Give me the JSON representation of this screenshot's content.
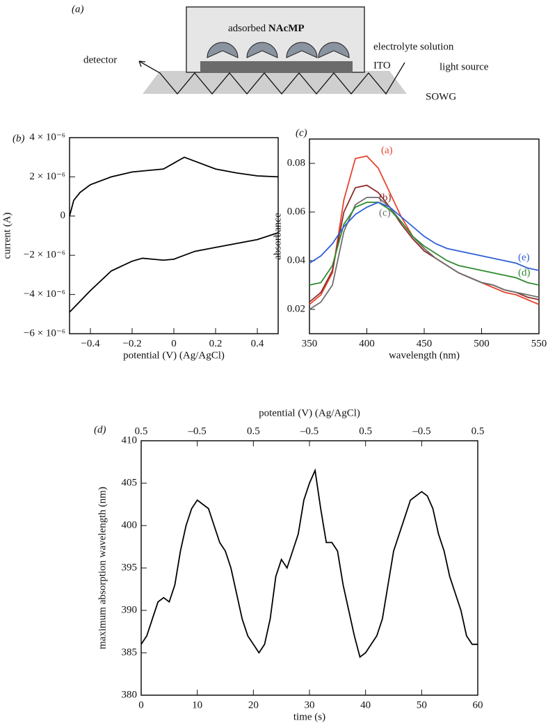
{
  "diagram": {
    "panel": "(a)",
    "adsorbed": "adsorbed",
    "molecule": "NAcMP",
    "electrolyte": "electrolyte solution",
    "detector": "detector",
    "ito": "ITO",
    "light": "light source",
    "sowg": "SOWG"
  },
  "chart_data": [
    {
      "type": "line",
      "panel": "(b)",
      "xlabel": "potential (V) (Ag/AgCl)",
      "ylabel": "current (A)",
      "xlim": [
        -0.5,
        0.5
      ],
      "xticks": [
        {
          "value": -0.4,
          "label": "−0.4"
        },
        {
          "value": -0.2,
          "label": "−0.2"
        },
        0,
        0.2,
        0.4
      ],
      "ylim": [
        -6e-06,
        4e-06
      ],
      "yticks": [
        {
          "value": 4e-06,
          "label": "4 × 10⁻⁶"
        },
        {
          "value": 2e-06,
          "label": "2 × 10⁻⁶"
        },
        0,
        {
          "value": -2e-06,
          "label": "−2 × 10⁻⁶"
        },
        {
          "value": -4e-06,
          "label": "−4 × 10⁻⁶"
        },
        {
          "value": -6e-06,
          "label": "−6 × 10⁻⁶"
        }
      ],
      "series": [
        {
          "color": "#000000",
          "x": [
            -0.5,
            -0.48,
            -0.45,
            -0.4,
            -0.3,
            -0.2,
            -0.1,
            -0.05,
            0,
            0.05,
            0.1,
            0.2,
            0.3,
            0.4,
            0.5
          ],
          "values": [
            0,
            8e-07,
            1.2e-06,
            1.6e-06,
            2e-06,
            2.25e-06,
            2.35e-06,
            2.4e-06,
            2.7e-06,
            3e-06,
            2.8e-06,
            2.4e-06,
            2.2e-06,
            2.05e-06,
            2e-06
          ]
        },
        {
          "color": "#000000",
          "x": [
            0.5,
            0.4,
            0.3,
            0.2,
            0.1,
            0.05,
            0,
            -0.05,
            -0.1,
            -0.15,
            -0.2,
            -0.3,
            -0.4,
            -0.5
          ],
          "values": [
            -8.5e-07,
            -1.2e-06,
            -1.4e-06,
            -1.6e-06,
            -1.8e-06,
            -2e-06,
            -2.2e-06,
            -2.25e-06,
            -2.2e-06,
            -2.15e-06,
            -2.3e-06,
            -2.8e-06,
            -3.8e-06,
            -4.9e-06
          ]
        }
      ]
    },
    {
      "type": "line",
      "panel": "(c)",
      "xlabel": "wavelength (nm)",
      "ylabel": "absorbance",
      "xlim": [
        350,
        550
      ],
      "xticks": [
        350,
        400,
        450,
        500,
        550
      ],
      "ylim": [
        0.01,
        0.09
      ],
      "yticks": [
        0.02,
        0.04,
        0.06,
        0.08
      ],
      "x": [
        350,
        360,
        370,
        380,
        390,
        400,
        410,
        420,
        430,
        440,
        450,
        460,
        470,
        480,
        490,
        500,
        510,
        520,
        530,
        540,
        550
      ],
      "series": [
        {
          "name": "(a)",
          "color": "#e8432e",
          "values": [
            0.022,
            0.026,
            0.035,
            0.065,
            0.082,
            0.083,
            0.078,
            0.068,
            0.058,
            0.05,
            0.045,
            0.041,
            0.038,
            0.035,
            0.033,
            0.031,
            0.029,
            0.027,
            0.026,
            0.024,
            0.022
          ]
        },
        {
          "name": "(b)",
          "color": "#8b2a2a",
          "values": [
            0.023,
            0.027,
            0.036,
            0.06,
            0.07,
            0.071,
            0.068,
            0.062,
            0.055,
            0.049,
            0.044,
            0.041,
            0.038,
            0.035,
            0.033,
            0.031,
            0.03,
            0.028,
            0.027,
            0.025,
            0.024
          ]
        },
        {
          "name": "(c)",
          "color": "#6e6e6e",
          "values": [
            0.02,
            0.023,
            0.03,
            0.052,
            0.063,
            0.066,
            0.066,
            0.062,
            0.056,
            0.05,
            0.045,
            0.041,
            0.038,
            0.035,
            0.033,
            0.031,
            0.03,
            0.028,
            0.027,
            0.026,
            0.025
          ]
        },
        {
          "name": "(d)",
          "color": "#2e8b2e",
          "values": [
            0.03,
            0.031,
            0.038,
            0.055,
            0.062,
            0.064,
            0.064,
            0.061,
            0.056,
            0.05,
            0.046,
            0.043,
            0.04,
            0.038,
            0.037,
            0.036,
            0.035,
            0.034,
            0.033,
            0.031,
            0.03
          ]
        },
        {
          "name": "(e)",
          "color": "#2f5fd6",
          "values": [
            0.039,
            0.042,
            0.047,
            0.054,
            0.059,
            0.062,
            0.064,
            0.062,
            0.058,
            0.054,
            0.05,
            0.047,
            0.045,
            0.044,
            0.043,
            0.042,
            0.041,
            0.04,
            0.039,
            0.037,
            0.036
          ]
        }
      ]
    },
    {
      "type": "line",
      "panel": "(d)",
      "xlabel": "time (s)",
      "ylabel": "maximum absorption wavelength (nm)",
      "x2label": "potential (V) (Ag/AgCl)",
      "xlim": [
        0,
        60
      ],
      "xticks": [
        0,
        10,
        20,
        30,
        40,
        50,
        60
      ],
      "x2ticks": [
        "0.5",
        "–0.5",
        "0.5",
        "–0.5",
        "0.5",
        "–0.5",
        "0.5"
      ],
      "ylim": [
        380,
        410
      ],
      "yticks": [
        380,
        385,
        390,
        395,
        400,
        405,
        410
      ],
      "x": [
        0,
        1,
        2,
        3,
        4,
        5,
        6,
        7,
        8,
        9,
        10,
        11,
        12,
        13,
        14,
        15,
        16,
        17,
        18,
        19,
        20,
        21,
        22,
        23,
        24,
        25,
        26,
        27,
        28,
        29,
        30,
        31,
        32,
        33,
        34,
        35,
        36,
        37,
        38,
        39,
        40,
        41,
        42,
        43,
        44,
        45,
        46,
        47,
        48,
        49,
        50,
        51,
        52,
        53,
        54,
        55,
        56,
        57,
        58,
        59,
        60
      ],
      "series": [
        {
          "color": "#000000",
          "values": [
            386,
            387,
            389,
            391,
            391.5,
            391,
            393,
            397,
            400,
            402,
            403,
            402.5,
            402,
            400,
            398,
            397,
            395,
            392,
            389,
            387,
            386,
            385,
            386,
            389,
            394,
            396,
            395,
            397,
            399,
            403,
            405,
            406.5,
            402,
            398,
            398,
            397,
            393,
            390,
            387,
            384.5,
            385,
            386,
            387,
            389,
            393,
            397,
            399,
            401,
            403,
            403.5,
            404,
            403.5,
            402,
            399,
            397,
            394,
            392,
            390,
            387,
            386,
            386
          ]
        }
      ]
    }
  ]
}
